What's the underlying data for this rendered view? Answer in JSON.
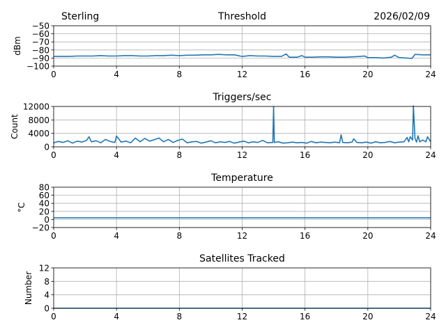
{
  "header": {
    "station": "Sterling",
    "date": "2026/02/09"
  },
  "chart_data": [
    {
      "type": "line",
      "title": "Threshold",
      "xlabel": "",
      "ylabel": "dBm",
      "xlim": [
        0,
        24
      ],
      "ylim": [
        -100,
        -50
      ],
      "xticks": [
        0,
        4,
        8,
        12,
        16,
        20,
        24
      ],
      "yticks": [
        -100,
        -90,
        -80,
        -70,
        -60,
        -50
      ],
      "ytick_labels": [
        "−100",
        "−90",
        "−80",
        "−70",
        "−60",
        "−50"
      ],
      "grid": true,
      "color": "#1f77b4",
      "x": [
        0,
        0.5,
        1,
        1.5,
        2,
        2.5,
        3,
        3.5,
        4,
        4.5,
        5,
        5.5,
        6,
        6.5,
        7,
        7.5,
        8,
        8.5,
        9,
        9.5,
        10,
        10.5,
        11,
        11.5,
        12,
        12.5,
        13,
        13.5,
        14,
        14.5,
        14.8,
        15,
        15.5,
        15.8,
        16,
        16.5,
        17,
        17.5,
        18,
        18.5,
        19,
        19.5,
        19.8,
        20,
        20.5,
        21,
        21.5,
        21.7,
        22,
        22.5,
        22.8,
        23,
        23.5,
        24
      ],
      "y": [
        -88,
        -88,
        -88,
        -87.5,
        -87.5,
        -87.5,
        -87,
        -87.5,
        -87.5,
        -87,
        -87,
        -87.5,
        -87.5,
        -87,
        -87,
        -86.5,
        -87,
        -86.5,
        -86.5,
        -86,
        -86,
        -85.5,
        -86,
        -86,
        -88,
        -87,
        -87.5,
        -87.5,
        -88,
        -88,
        -85,
        -89,
        -89,
        -87,
        -89,
        -89,
        -88.5,
        -88.5,
        -89,
        -89,
        -88.5,
        -88,
        -87.5,
        -89.5,
        -89.5,
        -90,
        -89,
        -86.5,
        -89.5,
        -90,
        -90.5,
        -85.5,
        -86,
        -86
      ]
    },
    {
      "type": "line",
      "title": "Triggers/sec",
      "xlabel": "",
      "ylabel": "Count",
      "xlim": [
        0,
        24
      ],
      "ylim": [
        0,
        12000
      ],
      "xticks": [
        0,
        4,
        8,
        12,
        16,
        20,
        24
      ],
      "yticks": [
        0,
        4000,
        8000,
        12000
      ],
      "ytick_labels": [
        "0",
        "4000",
        "8000",
        "12000"
      ],
      "grid": true,
      "color": "#1f77b4",
      "x": [
        0,
        0.3,
        0.6,
        0.9,
        1.2,
        1.5,
        1.8,
        2.1,
        2.25,
        2.4,
        2.7,
        3.0,
        3.3,
        3.6,
        3.9,
        4.0,
        4.3,
        4.6,
        4.9,
        5.2,
        5.5,
        5.8,
        6.1,
        6.4,
        6.7,
        7.0,
        7.3,
        7.6,
        7.9,
        8.2,
        8.5,
        8.8,
        9.1,
        9.4,
        9.7,
        10.0,
        10.3,
        10.6,
        10.9,
        11.2,
        11.5,
        11.8,
        12.1,
        12.4,
        12.7,
        13.0,
        13.3,
        13.6,
        13.95,
        14.0,
        14.05,
        14.3,
        14.6,
        14.9,
        15.2,
        15.5,
        15.8,
        16.1,
        16.4,
        16.7,
        17.0,
        17.3,
        17.6,
        17.9,
        18.2,
        18.3,
        18.4,
        18.7,
        19.0,
        19.1,
        19.3,
        19.6,
        19.9,
        20.2,
        20.5,
        20.8,
        21.1,
        21.4,
        21.7,
        22.0,
        22.3,
        22.5,
        22.6,
        22.7,
        22.85,
        22.9,
        23.0,
        23.1,
        23.2,
        23.3,
        23.5,
        23.7,
        23.8,
        24
      ],
      "y": [
        1200,
        1600,
        1300,
        1800,
        1100,
        1700,
        1400,
        1900,
        3000,
        1500,
        1800,
        1200,
        2200,
        1600,
        1300,
        3200,
        1400,
        1700,
        1200,
        2600,
        1500,
        2500,
        1700,
        2100,
        2600,
        1500,
        2200,
        1300,
        1900,
        2300,
        1200,
        1500,
        1600,
        1100,
        1400,
        1800,
        1200,
        1500,
        1300,
        1600,
        1100,
        1400,
        1700,
        1200,
        1500,
        1300,
        1900,
        1200,
        1300,
        12000,
        1300,
        1500,
        1100,
        1200,
        1400,
        1200,
        1300,
        1100,
        1600,
        1200,
        1400,
        1300,
        1200,
        1400,
        1200,
        3600,
        1300,
        1200,
        1400,
        2400,
        1300,
        1200,
        1400,
        1100,
        1500,
        1200,
        1300,
        1600,
        1200,
        1400,
        1500,
        2800,
        1500,
        3000,
        2000,
        12200,
        2500,
        1400,
        3300,
        1500,
        2000,
        1500,
        3000,
        1500
      ]
    },
    {
      "type": "line",
      "title": "Temperature",
      "xlabel": "",
      "ylabel": "°C",
      "xlim": [
        0,
        24
      ],
      "ylim": [
        -20,
        80
      ],
      "xticks": [
        0,
        4,
        8,
        12,
        16,
        20,
        24
      ],
      "yticks": [
        -20,
        0,
        20,
        40,
        60,
        80
      ],
      "ytick_labels": [
        "−20",
        "0",
        "20",
        "40",
        "60",
        "80"
      ],
      "grid": true,
      "color": "#1f77b4",
      "x": [
        0,
        24
      ],
      "y": [
        4,
        4
      ]
    },
    {
      "type": "line",
      "title": "Satellites Tracked",
      "xlabel": "",
      "ylabel": "Number",
      "xlim": [
        0,
        24
      ],
      "ylim": [
        0,
        12
      ],
      "xticks": [
        0,
        4,
        8,
        12,
        16,
        20,
        24
      ],
      "yticks": [
        0,
        4,
        8,
        12
      ],
      "ytick_labels": [
        "0",
        "4",
        "8",
        "12"
      ],
      "grid": true,
      "color": "#1f77b4",
      "x": [
        0,
        24
      ],
      "y": [
        0,
        0
      ]
    }
  ]
}
